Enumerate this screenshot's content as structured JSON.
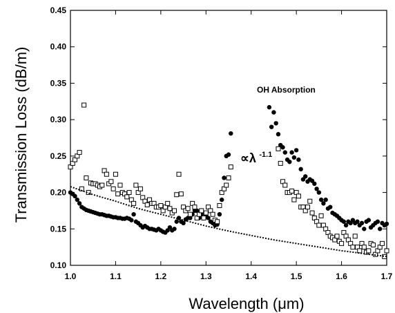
{
  "chart_data": {
    "type": "scatter",
    "title": "",
    "xlabel": "Wavelength (μm)",
    "ylabel": "Transmission Loss (dB/m)",
    "xlim": [
      1.0,
      1.7
    ],
    "ylim": [
      0.1,
      0.45
    ],
    "x_ticks": [
      "1.0",
      "1.1",
      "1.2",
      "1.3",
      "1.4",
      "1.5",
      "1.6",
      "1.7"
    ],
    "y_ticks": [
      "0.10",
      "0.15",
      "0.20",
      "0.25",
      "0.30",
      "0.35",
      "0.40",
      "0.45"
    ],
    "grid": false,
    "annotations": [
      {
        "text": "OH Absorption",
        "x": 1.43,
        "y": 0.335
      },
      {
        "prefix": "∝λ",
        "exponent": "-1.1",
        "x": 1.35,
        "y": 0.165
      }
    ],
    "series": [
      {
        "marker": "filled-circle",
        "x": [
          1.0,
          1.005,
          1.01,
          1.015,
          1.02,
          1.025,
          1.03,
          1.035,
          1.04,
          1.045,
          1.05,
          1.055,
          1.06,
          1.065,
          1.07,
          1.075,
          1.08,
          1.085,
          1.09,
          1.095,
          1.1,
          1.105,
          1.11,
          1.115,
          1.12,
          1.125,
          1.13,
          1.135,
          1.14,
          1.145,
          1.15,
          1.155,
          1.16,
          1.165,
          1.17,
          1.175,
          1.18,
          1.185,
          1.19,
          1.195,
          1.2,
          1.205,
          1.21,
          1.215,
          1.22,
          1.225,
          1.23,
          1.235,
          1.24,
          1.245,
          1.25,
          1.255,
          1.26,
          1.265,
          1.27,
          1.275,
          1.28,
          1.285,
          1.29,
          1.295,
          1.3,
          1.305,
          1.31,
          1.315,
          1.32,
          1.325,
          1.33,
          1.335,
          1.34,
          1.345,
          1.35,
          1.355,
          1.44,
          1.445,
          1.45,
          1.455,
          1.46,
          1.465,
          1.47,
          1.475,
          1.48,
          1.485,
          1.49,
          1.495,
          1.5,
          1.505,
          1.51,
          1.515,
          1.52,
          1.525,
          1.53,
          1.535,
          1.54,
          1.545,
          1.55,
          1.555,
          1.56,
          1.565,
          1.57,
          1.575,
          1.58,
          1.585,
          1.59,
          1.595,
          1.6,
          1.605,
          1.61,
          1.615,
          1.62,
          1.625,
          1.63,
          1.635,
          1.64,
          1.645,
          1.65,
          1.655,
          1.66,
          1.665,
          1.67,
          1.675,
          1.68,
          1.685,
          1.69,
          1.695,
          1.7
        ],
        "y": [
          0.2,
          0.198,
          0.195,
          0.19,
          0.185,
          0.18,
          0.178,
          0.176,
          0.175,
          0.174,
          0.173,
          0.172,
          0.171,
          0.17,
          0.17,
          0.169,
          0.168,
          0.168,
          0.167,
          0.166,
          0.166,
          0.165,
          0.165,
          0.164,
          0.164,
          0.165,
          0.164,
          0.162,
          0.17,
          0.16,
          0.158,
          0.155,
          0.152,
          0.154,
          0.152,
          0.15,
          0.15,
          0.149,
          0.148,
          0.15,
          0.148,
          0.146,
          0.145,
          0.148,
          0.152,
          0.148,
          0.15,
          0.16,
          0.165,
          0.16,
          0.158,
          0.163,
          0.165,
          0.165,
          0.17,
          0.175,
          0.175,
          0.165,
          0.17,
          0.165,
          0.168,
          0.165,
          0.16,
          0.158,
          0.155,
          0.156,
          0.17,
          0.19,
          0.22,
          0.25,
          0.252,
          0.281,
          0.317,
          0.29,
          0.31,
          0.295,
          0.28,
          0.265,
          0.262,
          0.255,
          0.245,
          0.242,
          0.255,
          0.248,
          0.258,
          0.245,
          0.232,
          0.218,
          0.222,
          0.215,
          0.218,
          0.216,
          0.212,
          0.205,
          0.2,
          0.19,
          0.185,
          0.19,
          0.178,
          0.18,
          0.172,
          0.17,
          0.168,
          0.165,
          0.162,
          0.16,
          0.155,
          0.16,
          0.158,
          0.162,
          0.158,
          0.16,
          0.155,
          0.158,
          0.15,
          0.16,
          0.162,
          0.152,
          0.155,
          0.158,
          0.16,
          0.15,
          0.158,
          0.155,
          0.157
        ],
        "color": "#000000"
      },
      {
        "marker": "open-square",
        "x": [
          1.0,
          1.005,
          1.01,
          1.015,
          1.02,
          1.025,
          1.03,
          1.035,
          1.04,
          1.045,
          1.05,
          1.055,
          1.06,
          1.065,
          1.07,
          1.075,
          1.08,
          1.085,
          1.09,
          1.095,
          1.1,
          1.105,
          1.11,
          1.115,
          1.12,
          1.125,
          1.13,
          1.135,
          1.14,
          1.145,
          1.15,
          1.155,
          1.16,
          1.165,
          1.17,
          1.175,
          1.18,
          1.185,
          1.19,
          1.195,
          1.2,
          1.205,
          1.21,
          1.215,
          1.22,
          1.225,
          1.23,
          1.235,
          1.24,
          1.245,
          1.25,
          1.255,
          1.26,
          1.265,
          1.27,
          1.275,
          1.28,
          1.285,
          1.29,
          1.295,
          1.3,
          1.305,
          1.31,
          1.315,
          1.32,
          1.325,
          1.33,
          1.335,
          1.34,
          1.345,
          1.35,
          1.355,
          1.46,
          1.465,
          1.47,
          1.475,
          1.48,
          1.485,
          1.49,
          1.495,
          1.5,
          1.505,
          1.51,
          1.515,
          1.52,
          1.525,
          1.53,
          1.535,
          1.54,
          1.545,
          1.55,
          1.555,
          1.56,
          1.565,
          1.57,
          1.575,
          1.58,
          1.585,
          1.59,
          1.595,
          1.6,
          1.605,
          1.61,
          1.615,
          1.62,
          1.625,
          1.63,
          1.635,
          1.64,
          1.645,
          1.65,
          1.655,
          1.66,
          1.665,
          1.67,
          1.675,
          1.68,
          1.685,
          1.69,
          1.695,
          1.7
        ],
        "y": [
          0.235,
          0.24,
          0.245,
          0.25,
          0.255,
          0.205,
          0.32,
          0.22,
          0.2,
          0.213,
          0.212,
          0.212,
          0.21,
          0.208,
          0.21,
          0.23,
          0.225,
          0.212,
          0.215,
          0.205,
          0.225,
          0.198,
          0.21,
          0.2,
          0.198,
          0.194,
          0.2,
          0.19,
          0.185,
          0.21,
          0.2,
          0.205,
          0.193,
          0.188,
          0.183,
          0.19,
          0.185,
          0.185,
          0.18,
          0.18,
          0.182,
          0.175,
          0.18,
          0.185,
          0.178,
          0.172,
          0.175,
          0.197,
          0.225,
          0.198,
          0.18,
          0.175,
          0.178,
          0.17,
          0.185,
          0.18,
          0.165,
          0.17,
          0.175,
          0.165,
          0.172,
          0.18,
          0.175,
          0.17,
          0.162,
          0.16,
          0.182,
          0.2,
          0.205,
          0.21,
          0.22,
          0.235,
          0.26,
          0.24,
          0.215,
          0.21,
          0.2,
          0.2,
          0.202,
          0.19,
          0.2,
          0.195,
          0.18,
          0.18,
          0.175,
          0.18,
          0.188,
          0.172,
          0.165,
          0.16,
          0.155,
          0.168,
          0.155,
          0.15,
          0.145,
          0.14,
          0.138,
          0.135,
          0.14,
          0.133,
          0.13,
          0.145,
          0.14,
          0.135,
          0.13,
          0.125,
          0.14,
          0.125,
          0.12,
          0.13,
          0.125,
          0.118,
          0.12,
          0.13,
          0.128,
          0.115,
          0.12,
          0.125,
          0.13,
          0.112,
          0.12
        ],
        "color": "#000000"
      },
      {
        "marker": "dotted-line",
        "x": [
          1.0,
          1.05,
          1.1,
          1.15,
          1.2,
          1.25,
          1.3,
          1.35,
          1.4,
          1.45,
          1.5,
          1.55,
          1.6,
          1.65,
          1.7
        ],
        "y": [
          0.208,
          0.197,
          0.188,
          0.178,
          0.17,
          0.162,
          0.154,
          0.147,
          0.141,
          0.135,
          0.13,
          0.125,
          0.12,
          0.116,
          0.112
        ],
        "color": "#000000"
      }
    ]
  }
}
